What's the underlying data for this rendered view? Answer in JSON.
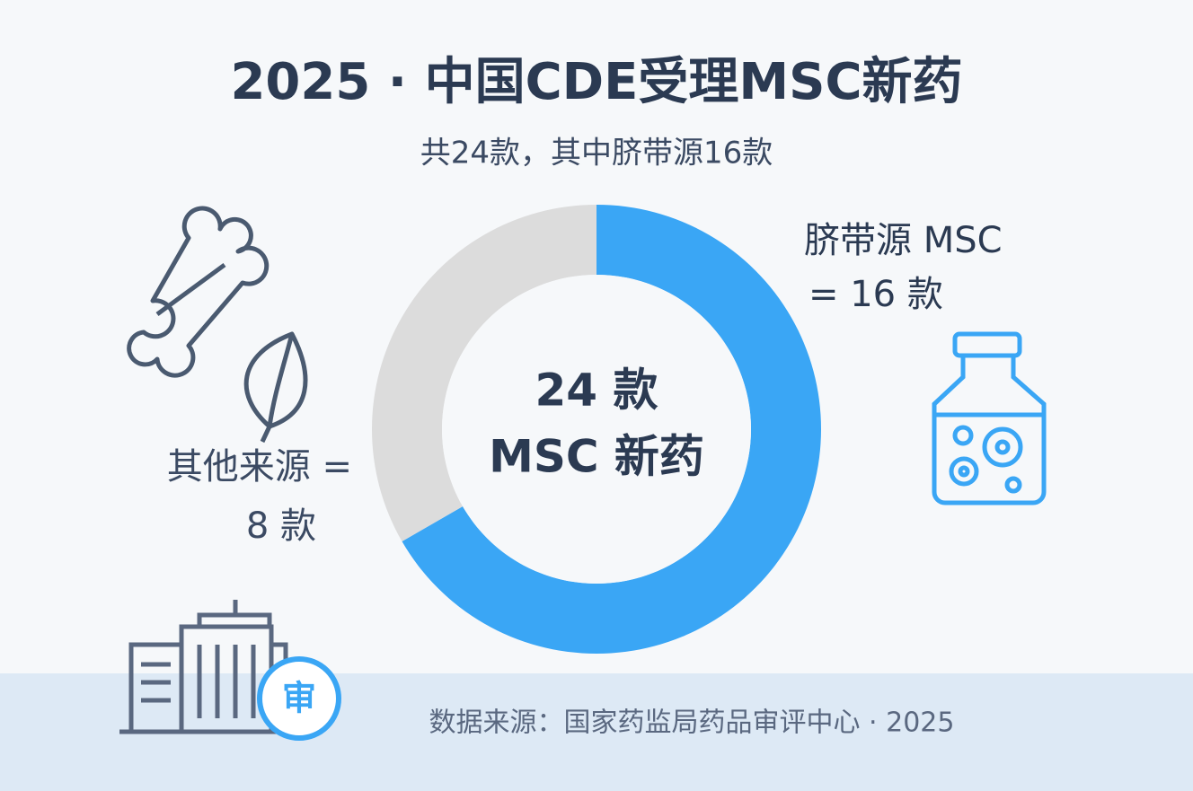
{
  "chart_data": {
    "type": "pie",
    "title": "2025 · 中国CDE受理MSC新药",
    "subtitle": "共24款，其中脐带源16款",
    "categories": [
      "脐带源 MSC",
      "其他来源 ="
    ],
    "values": [
      16,
      8
    ],
    "value_labels": [
      "= 16 款",
      "8 款"
    ],
    "colors": [
      "#3aa6f5",
      "#dcdcdc"
    ],
    "center_label": [
      "24 款",
      "MSC 新药"
    ],
    "badge": "审",
    "source": "数据来源：国家药监局药品审评中心 · 2025"
  }
}
